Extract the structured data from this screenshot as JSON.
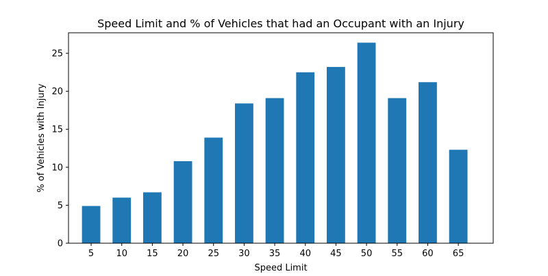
{
  "chart_data": {
    "type": "bar",
    "title": "Speed Limit and % of Vehicles that had an Occupant with an Injury",
    "xlabel": "Speed Limit",
    "ylabel": "% of Vehicles with Injury",
    "categories": [
      5,
      10,
      15,
      20,
      25,
      30,
      35,
      40,
      45,
      50,
      55,
      60,
      65
    ],
    "values": [
      4.9,
      6.0,
      6.7,
      10.8,
      13.9,
      18.4,
      19.1,
      22.5,
      23.2,
      26.4,
      19.1,
      21.2,
      12.3
    ],
    "xticks": [
      "5",
      "10",
      "15",
      "20",
      "25",
      "30",
      "35",
      "40",
      "45",
      "50",
      "55",
      "60",
      "65"
    ],
    "yticks": [
      "0",
      "5",
      "10",
      "15",
      "20",
      "25"
    ],
    "ylim": [
      0,
      27.7
    ],
    "xlim": [
      1.3,
      70.7
    ],
    "bar_width": 3,
    "bar_color": "#1f77b4",
    "grid": false,
    "legend": "none"
  }
}
